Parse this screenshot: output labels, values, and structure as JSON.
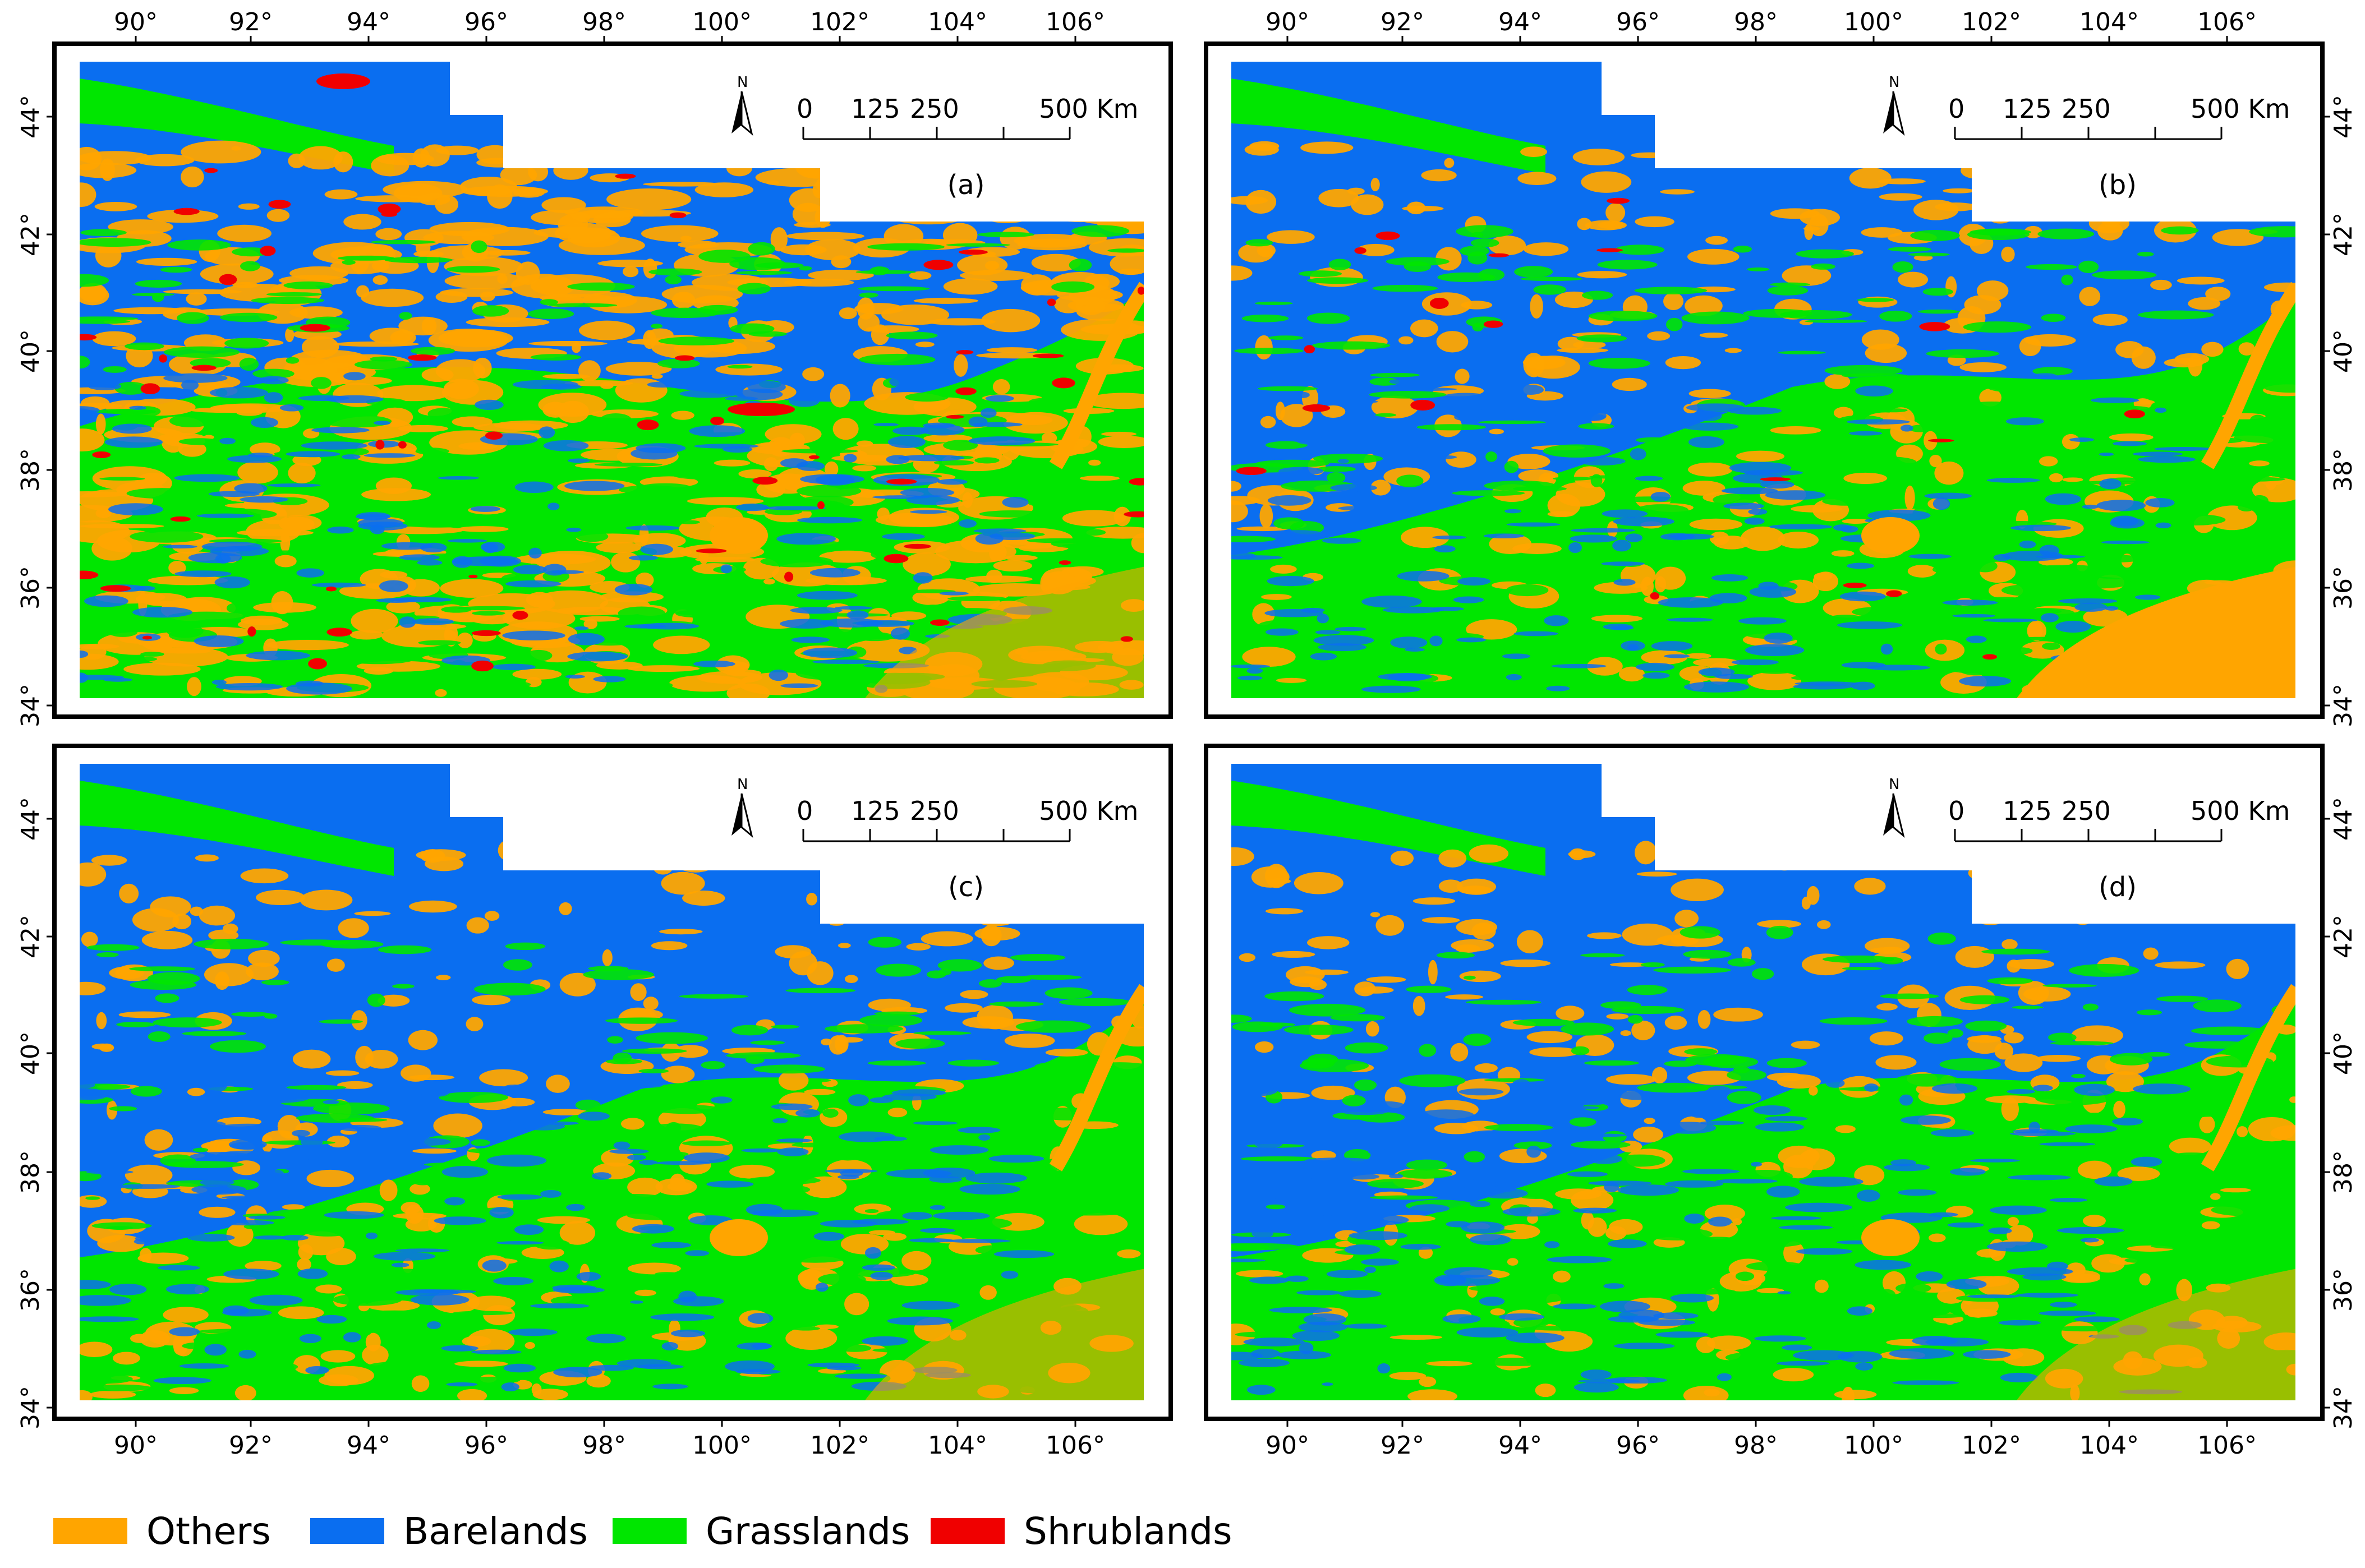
{
  "axes": {
    "lon_ticks": [
      "90°",
      "92°",
      "94°",
      "96°",
      "98°",
      "100°",
      "102°",
      "104°",
      "106°"
    ],
    "lat_ticks": [
      "34°",
      "36°",
      "38°",
      "40°",
      "42°",
      "44°"
    ]
  },
  "panels": [
    {
      "id": "a",
      "label": "(a)"
    },
    {
      "id": "b",
      "label": "(b)"
    },
    {
      "id": "c",
      "label": "(c)"
    },
    {
      "id": "d",
      "label": "(d)"
    }
  ],
  "north_arrow": {
    "label": "N"
  },
  "scale_bar": {
    "ticks": [
      "0",
      "125",
      "250",
      "500 Km"
    ]
  },
  "legend": [
    {
      "label": "Others",
      "color": "#FFA500"
    },
    {
      "label": "Barelands",
      "color": "#0A6EF0"
    },
    {
      "label": "Grasslands",
      "color": "#00E600"
    },
    {
      "label": "Shrublands",
      "color": "#F00000"
    }
  ],
  "colors": {
    "others": "#FFA500",
    "barelands": "#0A6EF0",
    "grasslands": "#00E600",
    "shrublands": "#F00000"
  }
}
